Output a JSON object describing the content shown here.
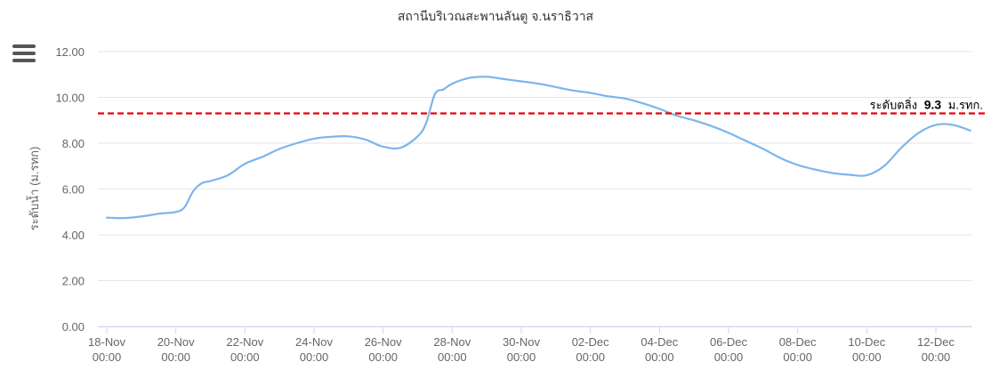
{
  "colors": {
    "line": "#7cb5ec",
    "threshold": "#e8000b",
    "grid": "#e6e6e6",
    "axis_text": "#666666",
    "title_text": "#333333"
  },
  "menu": {
    "icon": "hamburger-menu-icon"
  },
  "chart_data": {
    "type": "line",
    "title": "สถานีบริเวณสะพานลันตู จ.นราธิวาส",
    "ylabel": "ระดับน้ำ (ม.รทก)",
    "ylim": [
      0,
      12
    ],
    "xlim": [
      "2022-11-18 00:00",
      "2022-12-13 00:00"
    ],
    "y_ticks": [
      {
        "value": 0,
        "label": "0.00"
      },
      {
        "value": 2,
        "label": "2.00"
      },
      {
        "value": 4,
        "label": "4.00"
      },
      {
        "value": 6,
        "label": "6.00"
      },
      {
        "value": 8,
        "label": "8.00"
      },
      {
        "value": 10,
        "label": "10.00"
      },
      {
        "value": 12,
        "label": "12.00"
      }
    ],
    "x_ticks": [
      {
        "value": "2022-11-18 00:00",
        "label": "18-Nov",
        "sublabel": "00:00"
      },
      {
        "value": "2022-11-20 00:00",
        "label": "20-Nov",
        "sublabel": "00:00"
      },
      {
        "value": "2022-11-22 00:00",
        "label": "22-Nov",
        "sublabel": "00:00"
      },
      {
        "value": "2022-11-24 00:00",
        "label": "24-Nov",
        "sublabel": "00:00"
      },
      {
        "value": "2022-11-26 00:00",
        "label": "26-Nov",
        "sublabel": "00:00"
      },
      {
        "value": "2022-11-28 00:00",
        "label": "28-Nov",
        "sublabel": "00:00"
      },
      {
        "value": "2022-11-30 00:00",
        "label": "30-Nov",
        "sublabel": "00:00"
      },
      {
        "value": "2022-12-02 00:00",
        "label": "02-Dec",
        "sublabel": "00:00"
      },
      {
        "value": "2022-12-04 00:00",
        "label": "04-Dec",
        "sublabel": "00:00"
      },
      {
        "value": "2022-12-06 00:00",
        "label": "06-Dec",
        "sublabel": "00:00"
      },
      {
        "value": "2022-12-08 00:00",
        "label": "08-Dec",
        "sublabel": "00:00"
      },
      {
        "value": "2022-12-10 00:00",
        "label": "10-Dec",
        "sublabel": "00:00"
      },
      {
        "value": "2022-12-12 00:00",
        "label": "12-Dec",
        "sublabel": "00:00"
      }
    ],
    "threshold": {
      "value": 9.3,
      "label_prefix": "ระดับตลิ่ง",
      "label_value": "9.3",
      "label_suffix": "ม.รทก."
    },
    "grid": true,
    "series": [
      {
        "x": [
          "2022-11-18 00:00",
          "2022-11-18 12:00",
          "2022-11-19 00:00",
          "2022-11-19 12:00",
          "2022-11-20 00:00",
          "2022-11-20 06:00",
          "2022-11-20 12:00",
          "2022-11-20 18:00",
          "2022-11-21 00:00",
          "2022-11-21 12:00",
          "2022-11-22 00:00",
          "2022-11-22 12:00",
          "2022-11-23 00:00",
          "2022-11-23 12:00",
          "2022-11-24 00:00",
          "2022-11-24 12:00",
          "2022-11-25 00:00",
          "2022-11-25 12:00",
          "2022-11-26 00:00",
          "2022-11-26 12:00",
          "2022-11-27 00:00",
          "2022-11-27 06:00",
          "2022-11-27 12:00",
          "2022-11-27 18:00",
          "2022-11-28 00:00",
          "2022-11-28 12:00",
          "2022-11-29 00:00",
          "2022-11-29 12:00",
          "2022-11-30 00:00",
          "2022-11-30 12:00",
          "2022-12-01 00:00",
          "2022-12-01 12:00",
          "2022-12-02 00:00",
          "2022-12-02 12:00",
          "2022-12-03 00:00",
          "2022-12-03 12:00",
          "2022-12-04 00:00",
          "2022-12-04 12:00",
          "2022-12-05 00:00",
          "2022-12-05 12:00",
          "2022-12-06 00:00",
          "2022-12-06 12:00",
          "2022-12-07 00:00",
          "2022-12-07 12:00",
          "2022-12-08 00:00",
          "2022-12-08 12:00",
          "2022-12-09 00:00",
          "2022-12-09 12:00",
          "2022-12-10 00:00",
          "2022-12-10 12:00",
          "2022-12-11 00:00",
          "2022-12-11 12:00",
          "2022-12-12 00:00",
          "2022-12-12 12:00",
          "2022-12-13 00:00"
        ],
        "values": [
          4.75,
          4.73,
          4.8,
          4.92,
          5.0,
          5.2,
          5.9,
          6.25,
          6.35,
          6.6,
          7.1,
          7.4,
          7.75,
          8.0,
          8.2,
          8.28,
          8.3,
          8.15,
          7.85,
          7.8,
          8.3,
          8.9,
          10.15,
          10.35,
          10.6,
          10.85,
          10.9,
          10.8,
          10.7,
          10.6,
          10.45,
          10.3,
          10.2,
          10.05,
          9.95,
          9.75,
          9.5,
          9.2,
          9.0,
          8.75,
          8.45,
          8.1,
          7.75,
          7.35,
          7.05,
          6.85,
          6.7,
          6.62,
          6.6,
          7.0,
          7.8,
          8.45,
          8.8,
          8.8,
          8.55
        ]
      }
    ]
  }
}
